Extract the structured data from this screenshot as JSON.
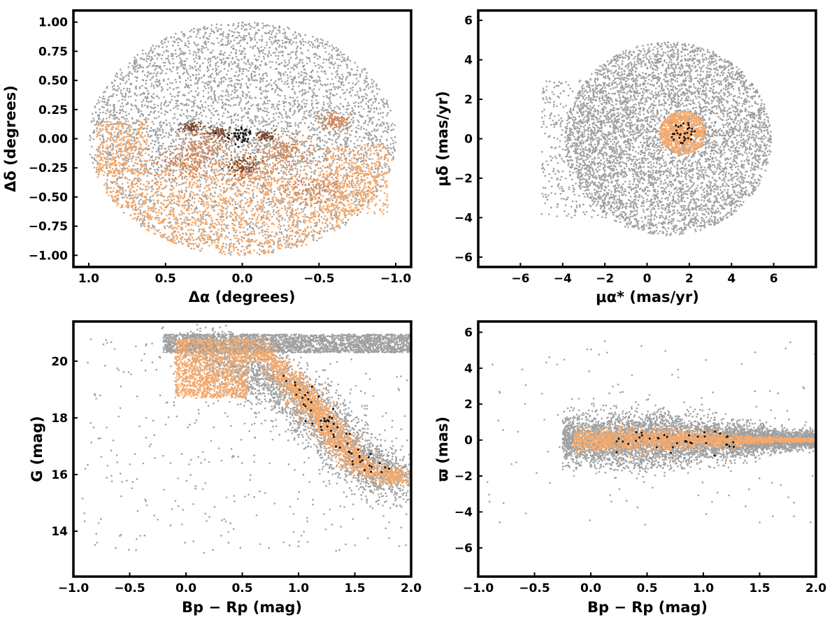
{
  "colors": {
    "field": "#a0a0a0",
    "members_light": "#f5a96b",
    "members_mid": "#d18b5e",
    "members_dark": "#7a4a30",
    "core": "#111111"
  },
  "chart_data": [
    {
      "id": "sky",
      "type": "scatter",
      "xlabel": "Δα (degrees)",
      "ylabel": "Δδ (degrees)",
      "xlim": [
        1.1,
        -1.1
      ],
      "ylim": [
        -1.1,
        1.1
      ],
      "x_inverted": true,
      "xticks": [
        1.0,
        0.5,
        0.0,
        -0.5,
        -1.0
      ],
      "xtick_labels": [
        "1.0",
        "0.5",
        "0.0",
        "−0.5",
        "−1.0"
      ],
      "yticks": [
        1.0,
        0.75,
        0.5,
        0.25,
        0.0,
        -0.25,
        -0.5,
        -0.75,
        -1.0
      ],
      "ytick_labels": [
        "1.00",
        "0.75",
        "0.50",
        "0.25",
        "0.00",
        "−0.25",
        "−0.50",
        "−0.75",
        "−1.00"
      ],
      "grid": false,
      "series": [
        {
          "role": "field",
          "color": "#a0a0a0",
          "n": 5200,
          "shape": "disk",
          "center": [
            0,
            0
          ],
          "radius": 1.0
        },
        {
          "role": "members-south",
          "color": "#f5a96b",
          "n": 2600,
          "shape": "disk-below",
          "center": [
            0,
            0
          ],
          "radius": 1.0,
          "y_max": -0.25
        },
        {
          "role": "members-east-edge",
          "color": "#f5a96b",
          "n": 350,
          "shape": "box",
          "x": [
            0.62,
            0.95
          ],
          "y": [
            -0.3,
            0.15
          ]
        },
        {
          "role": "members-west-edge",
          "color": "#f5a96b",
          "n": 350,
          "shape": "box",
          "x": [
            -0.95,
            -0.55
          ],
          "y": [
            -0.65,
            -0.05
          ]
        },
        {
          "role": "members-mid",
          "color": "#d18b5e",
          "n": 900,
          "shape": "clumps",
          "clumps": [
            [
              0.25,
              -0.05,
              0.08
            ],
            [
              -0.05,
              -0.25,
              0.1
            ],
            [
              -0.3,
              -0.1,
              0.08
            ],
            [
              -0.45,
              -0.45,
              0.1
            ],
            [
              0.35,
              -0.2,
              0.08
            ],
            [
              -0.6,
              0.15,
              0.05
            ]
          ]
        },
        {
          "role": "members-dark",
          "color": "#7a4a30",
          "n": 240,
          "shape": "clumps",
          "clumps": [
            [
              0.33,
              0.1,
              0.03
            ],
            [
              0.15,
              0.05,
              0.04
            ],
            [
              -0.15,
              0.02,
              0.03
            ],
            [
              0.0,
              -0.23,
              0.05
            ]
          ]
        },
        {
          "role": "core",
          "color": "#111111",
          "n": 40,
          "shape": "clumps",
          "clumps": [
            [
              0.02,
              0.02,
              0.04
            ]
          ]
        }
      ]
    },
    {
      "id": "proper-motion",
      "type": "scatter",
      "xlabel": "μα* (mas/yr)",
      "ylabel": "μδ (mas/yr)",
      "xlim": [
        -8,
        8
      ],
      "ylim": [
        -6.5,
        6.5
      ],
      "xticks": [
        -6,
        -4,
        -2,
        0,
        2,
        4,
        6
      ],
      "xtick_labels": [
        "−6",
        "−4",
        "−2",
        "0",
        "2",
        "4",
        "6"
      ],
      "yticks": [
        6,
        4,
        2,
        0,
        -2,
        -4,
        -6
      ],
      "ytick_labels": [
        "6",
        "4",
        "2",
        "0",
        "−2",
        "−4",
        "−6"
      ],
      "grid": false,
      "series": [
        {
          "role": "field",
          "color": "#a0a0a0",
          "n": 5600,
          "shape": "disk",
          "center": [
            1.0,
            0.0
          ],
          "radius": 4.9
        },
        {
          "role": "field-tail",
          "color": "#a0a0a0",
          "n": 500,
          "shape": "box",
          "x": [
            -5,
            -1
          ],
          "y": [
            -4,
            3
          ]
        },
        {
          "role": "members",
          "color": "#f5a96b",
          "n": 900,
          "shape": "disk",
          "center": [
            1.7,
            0.3
          ],
          "radius": 1.1
        },
        {
          "role": "core",
          "color": "#111111",
          "n": 30,
          "shape": "disk",
          "center": [
            1.7,
            0.3
          ],
          "radius": 0.6
        }
      ]
    },
    {
      "id": "cmd",
      "type": "scatter",
      "xlabel": "Bp − Rp (mag)",
      "ylabel": "G (mag)",
      "xlim": [
        -1.0,
        2.0
      ],
      "ylim": [
        12.4,
        21.4
      ],
      "y_inverted_note": "G increases upward as printed: 14 at bottom, 20 at top",
      "xticks": [
        -1.0,
        -0.5,
        0.0,
        0.5,
        1.0,
        1.5,
        2.0
      ],
      "xtick_labels": [
        "−1.0",
        "−0.5",
        "0.0",
        "0.5",
        "1.0",
        "1.5",
        "2.0"
      ],
      "yticks": [
        20,
        18,
        16,
        14
      ],
      "ytick_labels": [
        "20",
        "18",
        "16",
        "14"
      ],
      "grid": false,
      "series": [
        {
          "role": "field-top",
          "color": "#a0a0a0",
          "n": 2600,
          "shape": "box",
          "x": [
            -0.2,
            2.0
          ],
          "y": [
            20.3,
            20.95
          ]
        },
        {
          "role": "field-body",
          "color": "#a0a0a0",
          "n": 3000,
          "shape": "sequence",
          "path": [
            [
              0.1,
              20.5
            ],
            [
              0.6,
              19.6
            ],
            [
              1.0,
              18.8
            ],
            [
              1.3,
              17.5
            ],
            [
              1.6,
              16.3
            ],
            [
              1.95,
              15.7
            ]
          ],
          "spread": [
            0.28,
            0.9
          ]
        },
        {
          "role": "field-sparse",
          "color": "#a0a0a0",
          "n": 350,
          "shape": "box",
          "x": [
            -0.95,
            2.0
          ],
          "y": [
            13.2,
            20.9
          ]
        },
        {
          "role": "members-blue",
          "color": "#f5a96b",
          "n": 1300,
          "shape": "box",
          "x": [
            -0.1,
            0.55
          ],
          "y": [
            18.7,
            20.8
          ]
        },
        {
          "role": "members-sequence",
          "color": "#f5a96b",
          "n": 1900,
          "shape": "sequence",
          "path": [
            [
              0.6,
              20.6
            ],
            [
              0.95,
              19.2
            ],
            [
              1.15,
              18.3
            ],
            [
              1.35,
              17.2
            ],
            [
              1.55,
              16.3
            ],
            [
              1.95,
              15.8
            ]
          ],
          "spread": [
            0.14,
            0.35
          ]
        },
        {
          "role": "core",
          "color": "#111111",
          "n": 60,
          "shape": "sequence",
          "path": [
            [
              0.9,
              19.5
            ],
            [
              1.15,
              18.3
            ],
            [
              1.4,
              17.0
            ],
            [
              1.7,
              16.1
            ]
          ],
          "spread": [
            0.12,
            0.3
          ]
        }
      ]
    },
    {
      "id": "parallax",
      "type": "scatter",
      "xlabel": "Bp − Rp (mag)",
      "ylabel": "ϖ (mas)",
      "xlim": [
        -1.0,
        2.0
      ],
      "ylim": [
        -7.6,
        6.6
      ],
      "xticks": [
        -1.0,
        -0.5,
        0.0,
        0.5,
        1.0,
        1.5,
        2.0
      ],
      "xtick_labels": [
        "−1.0",
        "−0.5",
        "0.0",
        "0.5",
        "1.0",
        "1.5",
        "2.0"
      ],
      "yticks": [
        6,
        4,
        2,
        0,
        -2,
        -4,
        -6
      ],
      "ytick_labels": [
        "6",
        "4",
        "2",
        "0",
        "−2",
        "−4",
        "−6"
      ],
      "grid": false,
      "series": [
        {
          "role": "field",
          "color": "#a0a0a0",
          "n": 5600,
          "shape": "band",
          "x": [
            -0.25,
            2.0
          ],
          "y0": 0.0,
          "sigma_left": 1.3,
          "sigma_right": 0.5,
          "peak_x": 0.5,
          "sigma_peak": 1.6
        },
        {
          "role": "field-sparse",
          "color": "#a0a0a0",
          "n": 120,
          "shape": "box",
          "x": [
            -0.95,
            2.0
          ],
          "y": [
            -5.0,
            5.5
          ]
        },
        {
          "role": "members",
          "color": "#f5a96b",
          "n": 1900,
          "shape": "band",
          "x": [
            -0.15,
            2.0
          ],
          "y0": 0.0,
          "sigma_left": 0.6,
          "sigma_right": 0.12,
          "peak_x": 0.4,
          "sigma_peak": 0.7
        },
        {
          "role": "core",
          "color": "#111111",
          "n": 40,
          "shape": "band",
          "x": [
            0.2,
            1.3
          ],
          "y0": 0.0,
          "sigma_left": 0.6,
          "sigma_right": 0.5,
          "peak_x": 0.7,
          "sigma_peak": 0.6
        }
      ]
    }
  ]
}
